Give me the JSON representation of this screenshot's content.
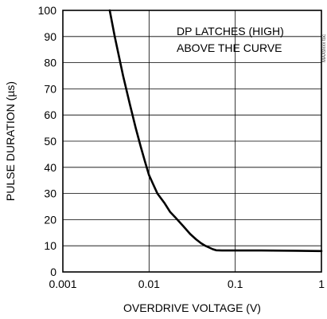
{
  "chart_data": {
    "type": "line",
    "xscale": "log",
    "xlim": [
      0.001,
      1
    ],
    "ylim": [
      0,
      100
    ],
    "xlabel": "OVERDRIVE VOLTAGE (V)",
    "ylabel": "PULSE DURATION (µs)",
    "x_ticks": [
      {
        "value": 0.001,
        "label": "0.001"
      },
      {
        "value": 0.01,
        "label": "0.01"
      },
      {
        "value": 0.1,
        "label": "0.1"
      },
      {
        "value": 1,
        "label": "1"
      }
    ],
    "y_ticks": [
      {
        "value": 0,
        "label": "0"
      },
      {
        "value": 10,
        "label": "10"
      },
      {
        "value": 20,
        "label": "20"
      },
      {
        "value": 30,
        "label": "30"
      },
      {
        "value": 40,
        "label": "40"
      },
      {
        "value": 50,
        "label": "50"
      },
      {
        "value": 60,
        "label": "60"
      },
      {
        "value": 70,
        "label": "70"
      },
      {
        "value": 80,
        "label": "80"
      },
      {
        "value": 90,
        "label": "90"
      },
      {
        "value": 100,
        "label": "100"
      }
    ],
    "grid": true,
    "annotation": {
      "lines": [
        "DP LATCHES (HIGH)",
        "ABOVE THE CURVE"
      ]
    },
    "side_code": "MAX9xxx toc",
    "colors": {
      "curve": "#000000",
      "grid": "#000000",
      "frame": "#000000"
    },
    "series": [
      {
        "x": [
          0.0035,
          0.004,
          0.0045,
          0.005,
          0.006,
          0.007,
          0.008,
          0.009,
          0.01,
          0.011,
          0.0125,
          0.015,
          0.0175,
          0.02,
          0.025,
          0.03,
          0.035,
          0.04,
          0.045,
          0.05,
          0.055,
          0.06,
          0.07,
          0.08,
          0.1,
          0.2,
          0.5,
          1.0
        ],
        "y": [
          100,
          90,
          82,
          75,
          64,
          55,
          48,
          42,
          37,
          34,
          30,
          26.5,
          23,
          21,
          17.5,
          14.5,
          12.5,
          11,
          10,
          9.3,
          8.7,
          8.3,
          8.2,
          8.2,
          8.2,
          8.2,
          8.1,
          8.0
        ]
      }
    ]
  }
}
